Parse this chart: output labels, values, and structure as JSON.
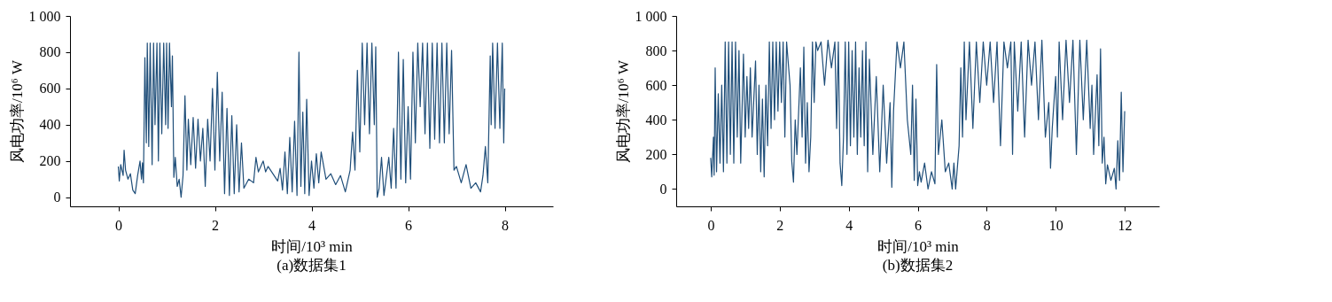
{
  "chart_data": [
    {
      "type": "line",
      "title": "(a)数据集1",
      "xlabel": "时间/10³ min",
      "ylabel": "风电功率/10⁶ W",
      "xlim": [
        -1,
        9
      ],
      "ylim": [
        -50,
        1000
      ],
      "xticks": [
        0,
        2,
        4,
        6,
        8
      ],
      "yticks": [
        0,
        200,
        400,
        600,
        800,
        {
          "value": 1000,
          "label": "1 000"
        }
      ],
      "grid": false,
      "marker": "none",
      "line_style": "solid",
      "series": [
        {
          "color": "#1f4e79",
          "x": [
            0,
            0.02,
            0.05,
            0.1,
            0.12,
            0.15,
            0.2,
            0.25,
            0.3,
            0.35,
            0.4,
            0.45,
            0.48,
            0.5,
            0.52,
            0.55,
            0.58,
            0.6,
            0.63,
            0.66,
            0.7,
            0.73,
            0.76,
            0.8,
            0.83,
            0.86,
            0.9,
            0.94,
            0.98,
            1.0,
            1.03,
            1.06,
            1.1,
            1.12,
            1.15,
            1.18,
            1.22,
            1.26,
            1.3,
            1.34,
            1.38,
            1.42,
            1.45,
            1.5,
            1.55,
            1.6,
            1.65,
            1.7,
            1.75,
            1.8,
            1.85,
            1.9,
            1.95,
            2.0,
            2.05,
            2.1,
            2.15,
            2.2,
            2.25,
            2.3,
            2.35,
            2.4,
            2.45,
            2.5,
            2.55,
            2.6,
            2.7,
            2.8,
            2.85,
            2.9,
            3.0,
            3.05,
            3.1,
            3.2,
            3.3,
            3.35,
            3.4,
            3.45,
            3.5,
            3.55,
            3.6,
            3.65,
            3.7,
            3.74,
            3.78,
            3.82,
            3.86,
            3.9,
            3.95,
            4.0,
            4.05,
            4.1,
            4.15,
            4.2,
            4.3,
            4.4,
            4.5,
            4.6,
            4.7,
            4.8,
            4.85,
            4.9,
            4.95,
            5.0,
            5.05,
            5.1,
            5.15,
            5.2,
            5.25,
            5.3,
            5.33,
            5.36,
            5.4,
            5.45,
            5.5,
            5.6,
            5.65,
            5.7,
            5.75,
            5.8,
            5.85,
            5.9,
            5.95,
            6.0,
            6.05,
            6.1,
            6.15,
            6.2,
            6.25,
            6.3,
            6.35,
            6.4,
            6.45,
            6.5,
            6.55,
            6.6,
            6.65,
            6.7,
            6.75,
            6.8,
            6.85,
            6.9,
            6.95,
            7.0,
            7.1,
            7.2,
            7.3,
            7.4,
            7.5,
            7.55,
            7.6,
            7.65,
            7.7,
            7.72,
            7.75,
            7.8,
            7.85,
            7.9,
            7.95,
            7.98,
            8.0
          ],
          "values": [
            170,
            90,
            180,
            120,
            260,
            150,
            100,
            130,
            40,
            20,
            120,
            200,
            100,
            190,
            80,
            770,
            300,
            850,
            280,
            850,
            180,
            850,
            400,
            850,
            200,
            850,
            350,
            850,
            400,
            850,
            380,
            850,
            500,
            780,
            110,
            220,
            60,
            100,
            0,
            120,
            560,
            150,
            430,
            180,
            440,
            160,
            430,
            200,
            380,
            60,
            430,
            200,
            600,
            150,
            690,
            200,
            580,
            20,
            490,
            10,
            450,
            20,
            400,
            30,
            300,
            50,
            100,
            80,
            220,
            140,
            200,
            140,
            170,
            130,
            90,
            160,
            40,
            250,
            20,
            330,
            30,
            420,
            10,
            800,
            60,
            470,
            20,
            540,
            10,
            200,
            50,
            240,
            80,
            250,
            100,
            130,
            70,
            120,
            30,
            150,
            360,
            150,
            700,
            250,
            850,
            400,
            850,
            350,
            850,
            400,
            830,
            0,
            50,
            220,
            10,
            220,
            50,
            380,
            50,
            800,
            100,
            760,
            80,
            500,
            100,
            800,
            300,
            850,
            500,
            850,
            350,
            850,
            270,
            850,
            320,
            850,
            300,
            850,
            300,
            850,
            350,
            810,
            150,
            170,
            80,
            180,
            50,
            80,
            30,
            120,
            280,
            80,
            780,
            400,
            850,
            380,
            850,
            380,
            850,
            300,
            600
          ]
        }
      ]
    },
    {
      "type": "line",
      "title": "(b)数据集2",
      "xlabel": "时间/10³ min",
      "ylabel": "风电功率/10⁶ W",
      "xlim": [
        -1,
        13
      ],
      "ylim": [
        -100,
        1000
      ],
      "xticks": [
        0,
        2,
        4,
        6,
        8,
        10,
        12
      ],
      "yticks": [
        0,
        200,
        400,
        600,
        800,
        {
          "value": 1000,
          "label": "1 000"
        }
      ],
      "grid": false,
      "marker": "none",
      "line_style": "solid",
      "series": [
        {
          "color": "#1f4e79",
          "x": [
            0,
            0.03,
            0.08,
            0.1,
            0.13,
            0.17,
            0.22,
            0.27,
            0.32,
            0.37,
            0.42,
            0.47,
            0.52,
            0.57,
            0.62,
            0.67,
            0.72,
            0.77,
            0.82,
            0.87,
            0.95,
            1.0,
            1.05,
            1.1,
            1.15,
            1.2,
            1.3,
            1.35,
            1.4,
            1.45,
            1.5,
            1.55,
            1.6,
            1.65,
            1.7,
            1.75,
            1.8,
            1.85,
            1.9,
            1.95,
            2.0,
            2.05,
            2.1,
            2.15,
            2.2,
            2.3,
            2.35,
            2.4,
            2.45,
            2.5,
            2.6,
            2.65,
            2.7,
            2.75,
            2.8,
            2.85,
            2.9,
            2.95,
            3.0,
            3.05,
            3.1,
            3.2,
            3.3,
            3.4,
            3.5,
            3.6,
            3.65,
            3.7,
            3.75,
            3.8,
            3.85,
            3.9,
            3.95,
            4.0,
            4.05,
            4.1,
            4.15,
            4.2,
            4.25,
            4.3,
            4.35,
            4.4,
            4.45,
            4.5,
            4.55,
            4.6,
            4.7,
            4.8,
            4.9,
            5.0,
            5.1,
            5.2,
            5.25,
            5.3,
            5.4,
            5.5,
            5.6,
            5.7,
            5.8,
            5.85,
            5.9,
            5.95,
            6.0,
            6.05,
            6.1,
            6.2,
            6.3,
            6.4,
            6.5,
            6.55,
            6.6,
            6.7,
            6.8,
            6.9,
            7.0,
            7.05,
            7.1,
            7.2,
            7.25,
            7.3,
            7.35,
            7.4,
            7.5,
            7.6,
            7.7,
            7.8,
            7.9,
            8.0,
            8.1,
            8.2,
            8.3,
            8.4,
            8.5,
            8.6,
            8.7,
            8.75,
            8.8,
            8.9,
            9.0,
            9.1,
            9.2,
            9.3,
            9.4,
            9.5,
            9.6,
            9.7,
            9.8,
            9.85,
            9.9,
            10.0,
            10.05,
            10.1,
            10.2,
            10.3,
            10.4,
            10.5,
            10.6,
            10.7,
            10.8,
            10.9,
            11.0,
            11.05,
            11.1,
            11.2,
            11.25,
            11.3,
            11.35,
            11.4,
            11.45,
            11.5,
            11.6,
            11.7,
            11.75,
            11.8,
            11.85,
            11.9,
            11.95,
            12.0
          ],
          "values": [
            180,
            70,
            300,
            80,
            700,
            100,
            550,
            150,
            600,
            100,
            850,
            150,
            850,
            200,
            850,
            150,
            850,
            300,
            800,
            150,
            780,
            300,
            650,
            350,
            700,
            300,
            740,
            200,
            600,
            100,
            520,
            70,
            600,
            250,
            850,
            350,
            850,
            400,
            850,
            450,
            850,
            500,
            850,
            300,
            850,
            600,
            160,
            40,
            400,
            200,
            700,
            300,
            820,
            150,
            500,
            100,
            300,
            850,
            500,
            850,
            800,
            850,
            600,
            860,
            700,
            850,
            350,
            850,
            150,
            20,
            300,
            850,
            200,
            850,
            250,
            800,
            300,
            850,
            200,
            700,
            300,
            800,
            250,
            850,
            100,
            750,
            200,
            650,
            100,
            600,
            150,
            500,
            10,
            450,
            850,
            700,
            850,
            400,
            200,
            600,
            50,
            520,
            20,
            100,
            40,
            150,
            0,
            100,
            30,
            720,
            200,
            400,
            100,
            150,
            0,
            150,
            0,
            250,
            700,
            300,
            850,
            400,
            850,
            350,
            850,
            500,
            850,
            600,
            850,
            500,
            850,
            250,
            850,
            700,
            850,
            200,
            850,
            450,
            850,
            300,
            860,
            600,
            850,
            400,
            860,
            300,
            500,
            120,
            350,
            650,
            300,
            850,
            400,
            860,
            500,
            860,
            200,
            860,
            400,
            860,
            350,
            600,
            200,
            660,
            250,
            810,
            150,
            300,
            30,
            140,
            50,
            120,
            0,
            280,
            50,
            560,
            100,
            450
          ]
        }
      ]
    }
  ]
}
